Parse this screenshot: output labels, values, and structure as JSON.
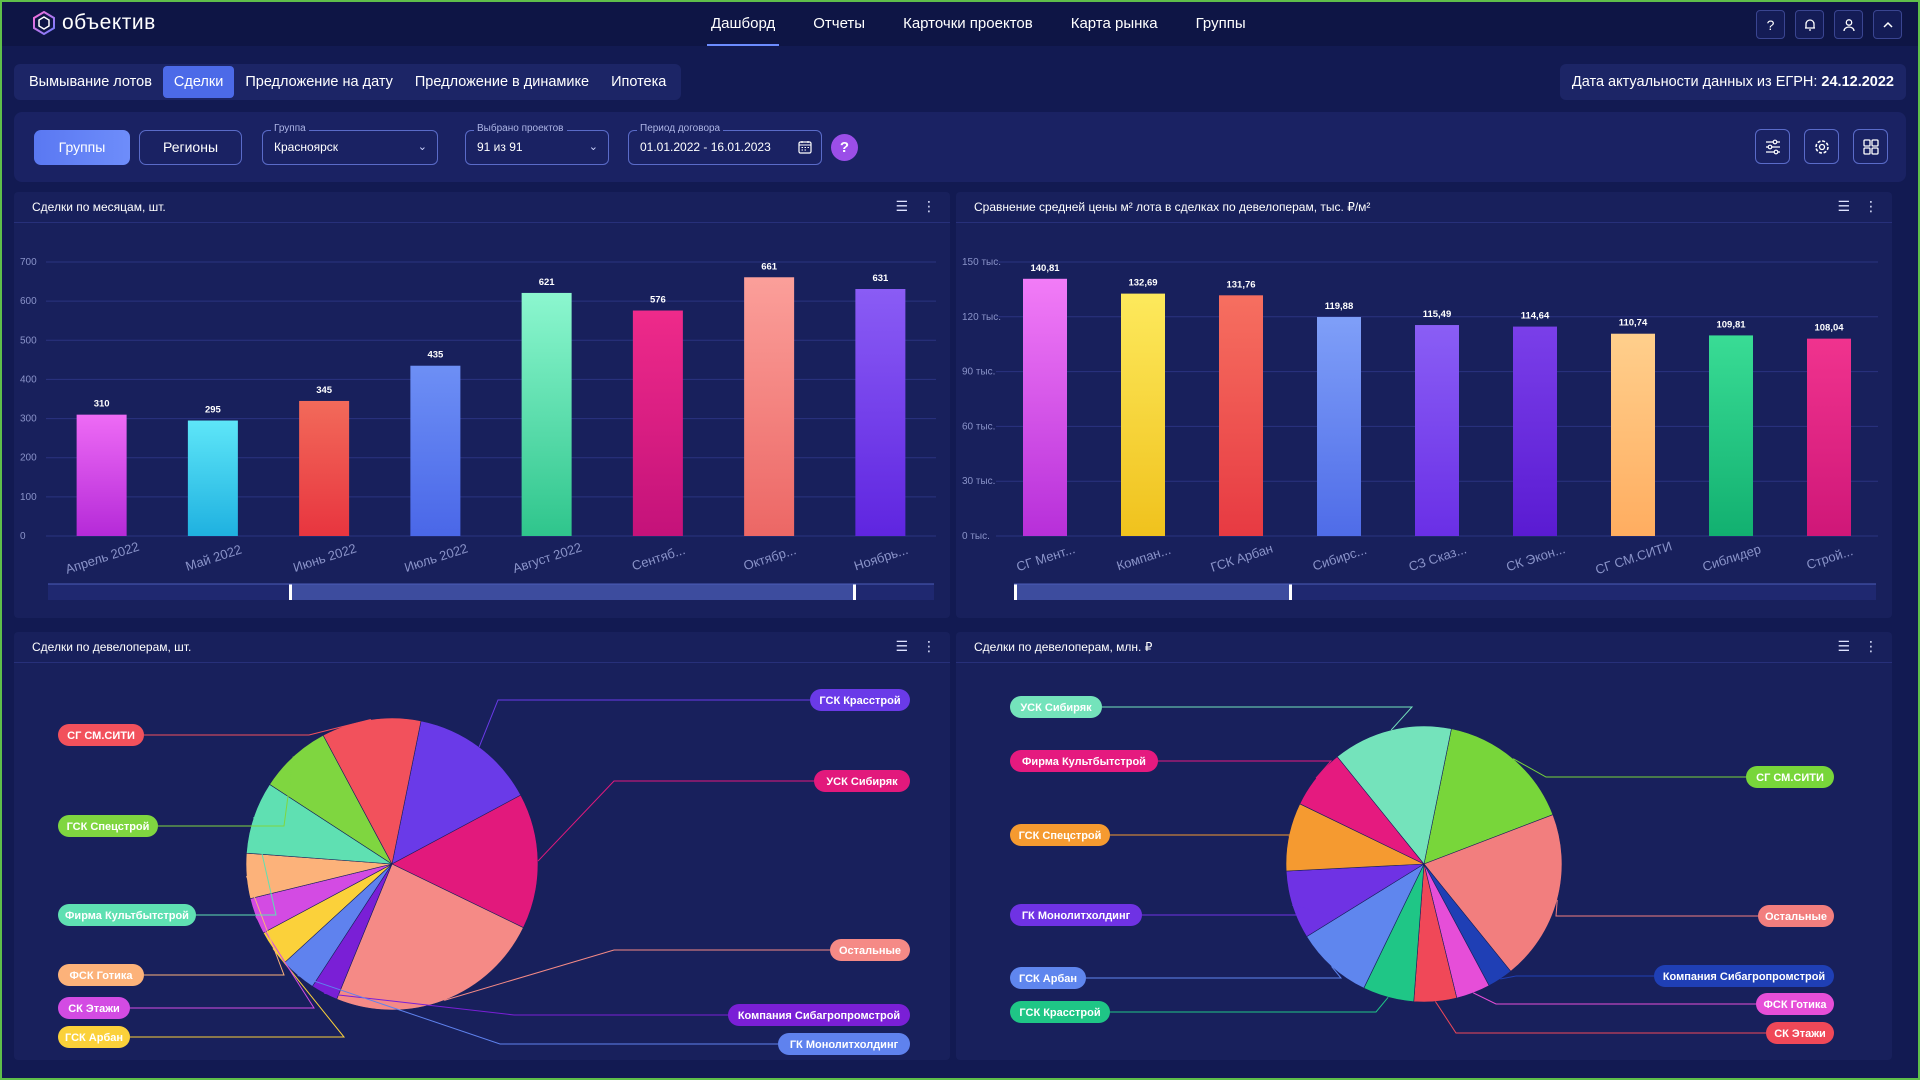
{
  "app": {
    "logo_text": "объектив"
  },
  "nav": {
    "items": [
      {
        "label": "Дашборд",
        "active": true
      },
      {
        "label": "Отчеты"
      },
      {
        "label": "Карточки проектов"
      },
      {
        "label": "Карта рынка"
      },
      {
        "label": "Группы"
      }
    ],
    "icons": [
      "help-icon",
      "bell-icon",
      "user-icon",
      "chevron-up-icon"
    ]
  },
  "subtabs": [
    {
      "label": "Вымывание лотов"
    },
    {
      "label": "Сделки",
      "active": true
    },
    {
      "label": "Предложение на дату"
    },
    {
      "label": "Предложение в динамике"
    },
    {
      "label": "Ипотека"
    }
  ],
  "egrn": {
    "label": "Дата актуальности данных из ЕГРН:",
    "date": "24.12.2022"
  },
  "filters": {
    "groups_button": "Группы",
    "regions_button": "Регионы",
    "group_label": "Группа",
    "group_value": "Красноярск",
    "projects_label": "Выбрано проектов",
    "projects_value": "91 из 91",
    "period_label": "Период договора",
    "period_value": "01.01.2022 - 16.01.2023",
    "help": "?"
  },
  "panels": {
    "deals_by_month": {
      "title": "Сделки по месяцам, шт."
    },
    "avg_price": {
      "title": "Сравнение средней цены м² лота в сделках по девелоперам, тыс. ₽/м²"
    },
    "deals_by_dev_count": {
      "title": "Сделки по девелоперам, шт."
    },
    "deals_by_dev_money": {
      "title": "Сделки по девелоперам, млн. ₽"
    }
  },
  "chart_data": [
    {
      "type": "bar",
      "categories": [
        "Апрель 2022",
        "Май 2022",
        "Июнь 2022",
        "Июль 2022",
        "Август 2022",
        "Сентяб...",
        "Октябр...",
        "Ноябрь..."
      ],
      "values": [
        310,
        295,
        345,
        435,
        621,
        576,
        661,
        631
      ],
      "ylim": [
        0,
        700
      ],
      "yticks": [
        "0",
        "100",
        "200",
        "300",
        "400",
        "500",
        "600",
        "700"
      ],
      "colors": [
        [
          "#ee6bf5",
          "#b52ad8"
        ],
        [
          "#5ee6f8",
          "#1fb1e0"
        ],
        [
          "#f26a5a",
          "#e8353f"
        ],
        [
          "#6d8ff5",
          "#4a67e8"
        ],
        [
          "#8cf7cf",
          "#2fc58c"
        ],
        [
          "#ee2a8a",
          "#c4127a"
        ],
        [
          "#fb9f9a",
          "#ec6765"
        ],
        [
          "#8a5cf5",
          "#5f25e0"
        ]
      ]
    },
    {
      "type": "bar",
      "categories": [
        "СГ Мент...",
        "Компан...",
        "ГСК Арбан",
        "Сибирс...",
        "СЗ Сказ...",
        "СК Экон...",
        "СГ СМ.СИТИ",
        "Сиблидер",
        "Строй..."
      ],
      "values": [
        140.81,
        132.69,
        131.76,
        119.88,
        115.49,
        114.64,
        110.74,
        109.81,
        108.04
      ],
      "labels": [
        "140,81",
        "132,69",
        "131,76",
        "119,88",
        "115,49",
        "114,64",
        "110,74",
        "109,81",
        "108,04"
      ],
      "ylim": [
        0,
        150
      ],
      "yticks": [
        "0 тыс.",
        "30 тыс.",
        "60 тыс.",
        "90 тыс.",
        "120 тыс.",
        "150 тыс."
      ],
      "colors": [
        [
          "#f27cf7",
          "#b72fd9"
        ],
        [
          "#fde95c",
          "#f0c21d"
        ],
        [
          "#f66f60",
          "#e73a42"
        ],
        [
          "#7f9ff8",
          "#4f6ce8"
        ],
        [
          "#8a5ef5",
          "#6a2fe6"
        ],
        [
          "#7a3fe9",
          "#5a1bd2"
        ],
        [
          "#ffcf8c",
          "#ffad60"
        ],
        [
          "#39dc95",
          "#12b070"
        ],
        [
          "#f0338e",
          "#cf1778"
        ]
      ]
    },
    {
      "type": "pie",
      "slices": [
        {
          "name": "ГСК Красстрой",
          "value": 14,
          "color": "#6a3ae8"
        },
        {
          "name": "УСК Сибиряк",
          "value": 15,
          "color": "#e2197c"
        },
        {
          "name": "Остальные",
          "value": 24,
          "color": "#f58a86"
        },
        {
          "name": "Компания Сибагропромстрой",
          "value": 3,
          "color": "#7a1fd6"
        },
        {
          "name": "ГК Монолитхолдинг",
          "value": 4,
          "color": "#5f82ee"
        },
        {
          "name": "ГСК Арбан",
          "value": 4,
          "color": "#fbd13a"
        },
        {
          "name": "СК Этажи",
          "value": 4,
          "color": "#d34be3"
        },
        {
          "name": "ФСК Готика",
          "value": 5,
          "color": "#fcb27a"
        },
        {
          "name": "Фирма Культбытстрой",
          "value": 8,
          "color": "#5fe0b2"
        },
        {
          "name": "ГСК Спецстрой",
          "value": 8,
          "color": "#7fd640"
        },
        {
          "name": "СГ СМ.СИТИ",
          "value": 11,
          "color": "#f2515c"
        }
      ]
    },
    {
      "type": "pie",
      "slices": [
        {
          "name": "СГ СМ.СИТИ",
          "value": 16,
          "color": "#78d63a"
        },
        {
          "name": "Остальные",
          "value": 20,
          "color": "#f27e7e"
        },
        {
          "name": "Компания Сибагропромстрой",
          "value": 3,
          "color": "#1f3fb5"
        },
        {
          "name": "ФСК Готика",
          "value": 4,
          "color": "#e64ed8"
        },
        {
          "name": "СК Этажи",
          "value": 5,
          "color": "#f04858"
        },
        {
          "name": "ГСК Красстрой",
          "value": 6,
          "color": "#1fc686"
        },
        {
          "name": "ГСК Арбан",
          "value": 9,
          "color": "#5f86ee"
        },
        {
          "name": "ГК Монолитхолдинг",
          "value": 8,
          "color": "#6f32e4"
        },
        {
          "name": "ГСК Спецстрой",
          "value": 8,
          "color": "#f59a30"
        },
        {
          "name": "Фирма Культбытстрой",
          "value": 7,
          "color": "#e51a7f"
        },
        {
          "name": "УСК Сибиряк",
          "value": 14,
          "color": "#74e3bb"
        }
      ]
    }
  ]
}
